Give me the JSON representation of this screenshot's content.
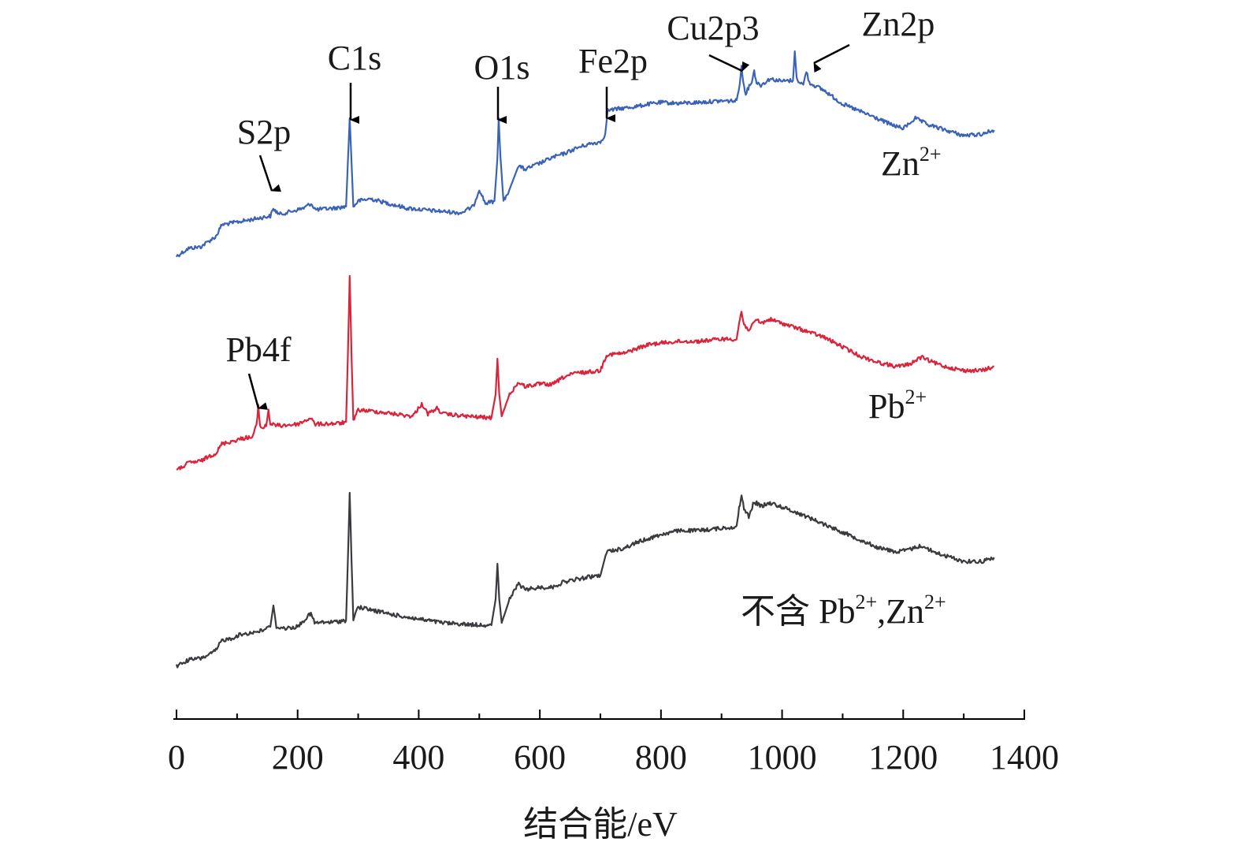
{
  "chart_data": {
    "type": "line",
    "title": "",
    "xlabel": "结合能/eV",
    "ylabel": "",
    "xlim": [
      0,
      1400
    ],
    "xticks": [
      0,
      200,
      400,
      600,
      800,
      1000,
      1200,
      1400
    ],
    "yaxis_visible": false,
    "grid": false,
    "colors": {
      "zn": "#3a63b8",
      "pb": "#d9243c",
      "blank": "#3a3a3f",
      "axis": "#000000",
      "text": "#1a1a1a"
    },
    "series": [
      {
        "key": "zn",
        "label_main": "Zn",
        "label_sup": "2+",
        "points": [
          [
            0,
            325
          ],
          [
            20,
            315
          ],
          [
            40,
            313
          ],
          [
            55,
            305
          ],
          [
            65,
            300
          ],
          [
            75,
            285
          ],
          [
            90,
            283
          ],
          [
            105,
            281
          ],
          [
            120,
            279
          ],
          [
            140,
            276
          ],
          [
            155,
            274
          ],
          [
            160,
            265
          ],
          [
            170,
            272
          ],
          [
            190,
            268
          ],
          [
            210,
            264
          ],
          [
            222,
            258
          ],
          [
            230,
            266
          ],
          [
            260,
            264
          ],
          [
            280,
            262
          ],
          [
            283,
            205
          ],
          [
            286,
            150
          ],
          [
            289,
            205
          ],
          [
            292,
            262
          ],
          [
            300,
            255
          ],
          [
            320,
            252
          ],
          [
            350,
            258
          ],
          [
            380,
            264
          ],
          [
            420,
            267
          ],
          [
            470,
            270
          ],
          [
            490,
            262
          ],
          [
            500,
            240
          ],
          [
            510,
            258
          ],
          [
            525,
            255
          ],
          [
            530,
            200
          ],
          [
            532,
            150
          ],
          [
            535,
            200
          ],
          [
            540,
            255
          ],
          [
            550,
            240
          ],
          [
            565,
            210
          ],
          [
            575,
            215
          ],
          [
            600,
            207
          ],
          [
            620,
            200
          ],
          [
            640,
            195
          ],
          [
            660,
            188
          ],
          [
            680,
            183
          ],
          [
            700,
            180
          ],
          [
            708,
            170
          ],
          [
            712,
            140
          ],
          [
            730,
            138
          ],
          [
            760,
            135
          ],
          [
            780,
            132
          ],
          [
            800,
            130
          ],
          [
            830,
            131
          ],
          [
            860,
            130
          ],
          [
            900,
            128
          ],
          [
            925,
            128
          ],
          [
            930,
            105
          ],
          [
            933,
            85
          ],
          [
            936,
            105
          ],
          [
            940,
            118
          ],
          [
            950,
            103
          ],
          [
            954,
            90
          ],
          [
            958,
            105
          ],
          [
            965,
            108
          ],
          [
            980,
            100
          ],
          [
            1000,
            103
          ],
          [
            1018,
            102
          ],
          [
            1021,
            65
          ],
          [
            1024,
            100
          ],
          [
            1035,
            108
          ],
          [
            1040,
            90
          ],
          [
            1045,
            105
          ],
          [
            1070,
            115
          ],
          [
            1100,
            132
          ],
          [
            1150,
            148
          ],
          [
            1180,
            158
          ],
          [
            1200,
            163
          ],
          [
            1220,
            150
          ],
          [
            1240,
            158
          ],
          [
            1270,
            165
          ],
          [
            1300,
            172
          ],
          [
            1330,
            170
          ],
          [
            1350,
            165
          ]
        ]
      },
      {
        "key": "pb",
        "label_main": "Pb",
        "label_sup": "2+",
        "points": [
          [
            0,
            597
          ],
          [
            20,
            587
          ],
          [
            40,
            585
          ],
          [
            55,
            578
          ],
          [
            65,
            575
          ],
          [
            75,
            563
          ],
          [
            90,
            560
          ],
          [
            105,
            557
          ],
          [
            115,
            555
          ],
          [
            125,
            555
          ],
          [
            132,
            540
          ],
          [
            135,
            515
          ],
          [
            138,
            540
          ],
          [
            142,
            543
          ],
          [
            148,
            540
          ],
          [
            152,
            520
          ],
          [
            155,
            538
          ],
          [
            170,
            540
          ],
          [
            200,
            538
          ],
          [
            222,
            530
          ],
          [
            228,
            538
          ],
          [
            270,
            537
          ],
          [
            280,
            535
          ],
          [
            283,
            450
          ],
          [
            286,
            350
          ],
          [
            289,
            450
          ],
          [
            292,
            535
          ],
          [
            300,
            520
          ],
          [
            330,
            522
          ],
          [
            360,
            525
          ],
          [
            390,
            528
          ],
          [
            405,
            512
          ],
          [
            415,
            525
          ],
          [
            430,
            518
          ],
          [
            440,
            525
          ],
          [
            480,
            528
          ],
          [
            520,
            530
          ],
          [
            527,
            500
          ],
          [
            530,
            455
          ],
          [
            533,
            500
          ],
          [
            537,
            528
          ],
          [
            550,
            500
          ],
          [
            565,
            485
          ],
          [
            575,
            490
          ],
          [
            600,
            487
          ],
          [
            620,
            488
          ],
          [
            640,
            478
          ],
          [
            660,
            473
          ],
          [
            680,
            472
          ],
          [
            700,
            470
          ],
          [
            710,
            450
          ],
          [
            740,
            448
          ],
          [
            760,
            442
          ],
          [
            780,
            437
          ],
          [
            800,
            435
          ],
          [
            830,
            433
          ],
          [
            860,
            433
          ],
          [
            900,
            430
          ],
          [
            925,
            430
          ],
          [
            929,
            410
          ],
          [
            933,
            395
          ],
          [
            937,
            412
          ],
          [
            945,
            418
          ],
          [
            952,
            412
          ],
          [
            958,
            405
          ],
          [
            965,
            410
          ],
          [
            980,
            405
          ],
          [
            1000,
            410
          ],
          [
            1040,
            420
          ],
          [
            1070,
            428
          ],
          [
            1100,
            440
          ],
          [
            1130,
            452
          ],
          [
            1160,
            460
          ],
          [
            1190,
            465
          ],
          [
            1210,
            462
          ],
          [
            1230,
            453
          ],
          [
            1250,
            460
          ],
          [
            1270,
            465
          ],
          [
            1300,
            470
          ],
          [
            1330,
            470
          ],
          [
            1350,
            465
          ]
        ]
      },
      {
        "key": "blank",
        "label_main": "不含 Pb",
        "label_sup": "2+",
        "label_mid": ",Zn",
        "label_sup2": "2+",
        "points": [
          [
            0,
            845
          ],
          [
            20,
            837
          ],
          [
            40,
            835
          ],
          [
            55,
            830
          ],
          [
            65,
            825
          ],
          [
            75,
            812
          ],
          [
            90,
            810
          ],
          [
            105,
            805
          ],
          [
            120,
            803
          ],
          [
            140,
            800
          ],
          [
            155,
            795
          ],
          [
            160,
            768
          ],
          [
            165,
            795
          ],
          [
            180,
            797
          ],
          [
            200,
            795
          ],
          [
            222,
            778
          ],
          [
            228,
            790
          ],
          [
            260,
            789
          ],
          [
            280,
            787
          ],
          [
            283,
            710
          ],
          [
            286,
            625
          ],
          [
            289,
            710
          ],
          [
            292,
            785
          ],
          [
            300,
            770
          ],
          [
            330,
            775
          ],
          [
            360,
            780
          ],
          [
            390,
            784
          ],
          [
            440,
            790
          ],
          [
            480,
            792
          ],
          [
            520,
            793
          ],
          [
            527,
            760
          ],
          [
            530,
            715
          ],
          [
            533,
            760
          ],
          [
            537,
            790
          ],
          [
            550,
            760
          ],
          [
            565,
            740
          ],
          [
            575,
            748
          ],
          [
            600,
            745
          ],
          [
            620,
            745
          ],
          [
            640,
            738
          ],
          [
            660,
            735
          ],
          [
            680,
            732
          ],
          [
            700,
            730
          ],
          [
            710,
            700
          ],
          [
            740,
            695
          ],
          [
            760,
            688
          ],
          [
            780,
            683
          ],
          [
            800,
            678
          ],
          [
            830,
            673
          ],
          [
            860,
            673
          ],
          [
            900,
            670
          ],
          [
            925,
            668
          ],
          [
            929,
            645
          ],
          [
            933,
            628
          ],
          [
            937,
            645
          ],
          [
            945,
            655
          ],
          [
            952,
            640
          ],
          [
            958,
            638
          ],
          [
            965,
            642
          ],
          [
            980,
            638
          ],
          [
            1000,
            643
          ],
          [
            1040,
            655
          ],
          [
            1070,
            665
          ],
          [
            1100,
            675
          ],
          [
            1130,
            685
          ],
          [
            1160,
            695
          ],
          [
            1190,
            700
          ],
          [
            1210,
            697
          ],
          [
            1230,
            692
          ],
          [
            1250,
            700
          ],
          [
            1270,
            705
          ],
          [
            1300,
            712
          ],
          [
            1330,
            712
          ],
          [
            1350,
            707
          ]
        ]
      }
    ],
    "annotations": [
      {
        "text": "C1s",
        "x": 286,
        "series": "zn"
      },
      {
        "text": "O1s",
        "x": 532,
        "series": "zn"
      },
      {
        "text": "Fe2p",
        "x": 710,
        "series": "zn"
      },
      {
        "text": "S2p",
        "x": 160,
        "series": "zn"
      },
      {
        "text": "Cu2p3",
        "x": 933,
        "series": "zn"
      },
      {
        "text": "Zn2p",
        "x": 1040,
        "series": "zn"
      },
      {
        "text": "Pb4f",
        "x": 137,
        "series": "pb"
      }
    ]
  }
}
